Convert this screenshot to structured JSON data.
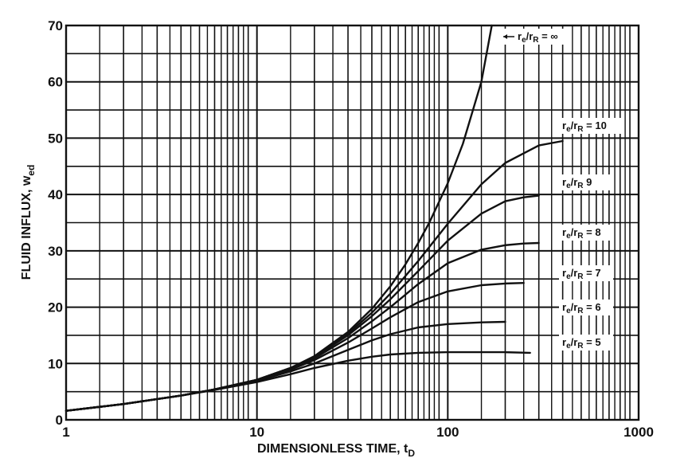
{
  "chart_data": {
    "type": "line",
    "title": "",
    "xlabel": "DIMENSIONLESS TIME, t",
    "xlabel_subscript": "D",
    "ylabel": "FLUID INFLUX, w",
    "ylabel_subscript": "ed",
    "x_scale": "log",
    "xlim": [
      1,
      1000
    ],
    "ylim": [
      0,
      70
    ],
    "x_ticks": [
      1,
      10,
      100,
      1000
    ],
    "x_tick_labels": [
      "1",
      "10",
      "100",
      "1000"
    ],
    "y_ticks": [
      0,
      10,
      20,
      30,
      40,
      50,
      60,
      70
    ],
    "y_tick_labels": [
      "0",
      "10",
      "20",
      "30",
      "40",
      "50",
      "60",
      "70"
    ],
    "grid": true,
    "series": [
      {
        "name": "re/rR = ∞",
        "label_parts": [
          "r",
          "e",
          "/r",
          "R",
          " = ∞"
        ],
        "label_arrow": true,
        "x": [
          1,
          2,
          4,
          6,
          10,
          15,
          20,
          30,
          40,
          50,
          60,
          70,
          80,
          100,
          120,
          150,
          170
        ],
        "y": [
          1.6,
          2.8,
          4.3,
          5.4,
          7.1,
          9.2,
          11.3,
          15.6,
          19.7,
          23.7,
          27.6,
          31.4,
          35.0,
          42.0,
          49.0,
          60.0,
          70.0
        ]
      },
      {
        "name": "re/rR = 10",
        "label_parts": [
          "r",
          "e",
          "/r",
          "R",
          " = 10"
        ],
        "label_arrow": false,
        "x": [
          1,
          2,
          4,
          6,
          10,
          15,
          20,
          30,
          40,
          50,
          70,
          100,
          150,
          200,
          300,
          400
        ],
        "y": [
          1.6,
          2.8,
          4.3,
          5.4,
          7.1,
          9.2,
          11.2,
          15.3,
          19.0,
          22.4,
          28.2,
          34.8,
          41.8,
          45.6,
          48.7,
          49.5
        ]
      },
      {
        "name": "re/rR = 9",
        "label_parts": [
          "r",
          "e",
          "/r",
          "R",
          "  9"
        ],
        "label_arrow": false,
        "x": [
          1,
          2,
          4,
          6,
          10,
          15,
          20,
          30,
          40,
          50,
          70,
          100,
          150,
          200,
          250,
          300
        ],
        "y": [
          1.6,
          2.8,
          4.3,
          5.4,
          7.1,
          9.2,
          11.1,
          15.0,
          18.4,
          21.4,
          26.4,
          31.8,
          36.6,
          38.8,
          39.5,
          39.8
        ]
      },
      {
        "name": "re/rR = 8",
        "label_parts": [
          "r",
          "e",
          "/r",
          "R",
          " = 8"
        ],
        "label_arrow": false,
        "x": [
          1,
          2,
          4,
          6,
          10,
          15,
          20,
          30,
          40,
          50,
          70,
          100,
          150,
          200,
          250,
          300
        ],
        "y": [
          1.6,
          2.8,
          4.3,
          5.4,
          7.1,
          9.1,
          10.9,
          14.5,
          17.5,
          20.0,
          24.1,
          27.8,
          30.2,
          31.0,
          31.3,
          31.4
        ]
      },
      {
        "name": "re/rR = 7",
        "label_parts": [
          "r",
          "e",
          "/r",
          "R",
          " = 7"
        ],
        "label_arrow": false,
        "x": [
          1,
          2,
          4,
          6,
          10,
          15,
          20,
          30,
          40,
          50,
          70,
          100,
          150,
          200,
          250
        ],
        "y": [
          1.6,
          2.8,
          4.3,
          5.4,
          7.0,
          8.9,
          10.6,
          13.7,
          16.2,
          18.2,
          20.9,
          22.8,
          23.9,
          24.2,
          24.3
        ]
      },
      {
        "name": "re/rR = 6",
        "label_parts": [
          "r",
          "e",
          "/r",
          "R",
          " = 6"
        ],
        "label_arrow": false,
        "x": [
          1,
          2,
          4,
          6,
          10,
          15,
          20,
          30,
          40,
          50,
          70,
          100,
          150,
          200
        ],
        "y": [
          1.6,
          2.8,
          4.3,
          5.4,
          6.9,
          8.6,
          10.0,
          12.4,
          14.1,
          15.2,
          16.4,
          17.0,
          17.3,
          17.4
        ]
      },
      {
        "name": "re/rR = 5",
        "label_parts": [
          "r",
          "e",
          "/r",
          "R",
          " = 5"
        ],
        "label_arrow": false,
        "x": [
          1,
          2,
          4,
          6,
          10,
          15,
          20,
          30,
          40,
          50,
          70,
          100,
          150,
          200,
          270
        ],
        "y": [
          1.6,
          2.8,
          4.3,
          5.3,
          6.7,
          8.1,
          9.2,
          10.5,
          11.2,
          11.6,
          11.9,
          12.0,
          12.0,
          12.0,
          11.9
        ]
      }
    ]
  }
}
